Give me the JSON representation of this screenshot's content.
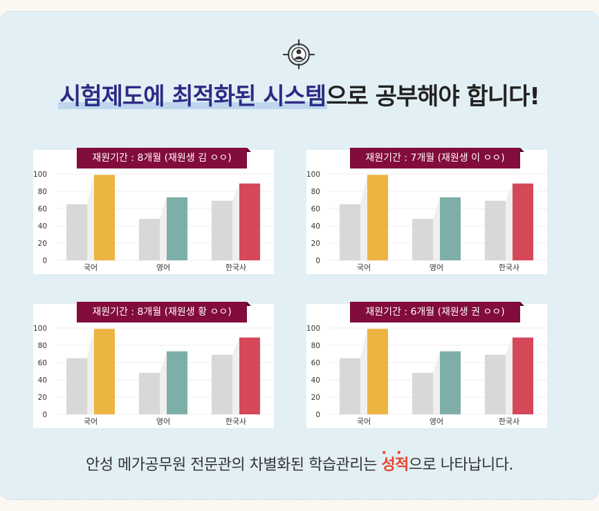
{
  "headline": {
    "part1": "시험제도에 최적화된 시스템",
    "part2": "으로 공부해야 합니다!"
  },
  "footer": {
    "before": "안성 메가공무원 전문관의 차별화된 학습관리는 ",
    "accent": "성적",
    "after": "으로 나타납니다."
  },
  "colors": {
    "baseline_bar": "#d8d8d8",
    "korean": "#ecb440",
    "english": "#7eaea8",
    "history": "#d4485a",
    "label_bg": "#820c3c",
    "headline_blue": "#2c2b86",
    "accent": "#e8452c"
  },
  "icon": "target-person-icon",
  "chart_data": [
    {
      "type": "bar",
      "title": "재원기간 : 8개월 (재원생 김 ㅇㅇ)",
      "categories": [
        "국어",
        "영어",
        "한국사"
      ],
      "series": [
        {
          "values": [
            65,
            48,
            69
          ]
        },
        {
          "values": [
            99,
            73,
            89
          ]
        }
      ],
      "yticks": [
        0,
        20,
        40,
        60,
        80,
        100
      ],
      "ylim": [
        0,
        100
      ],
      "grid": true
    },
    {
      "type": "bar",
      "title": "재원기간 : 7개월 (재원생 이 ㅇㅇ)",
      "categories": [
        "국어",
        "영어",
        "한국사"
      ],
      "series": [
        {
          "values": [
            65,
            48,
            69
          ]
        },
        {
          "values": [
            99,
            73,
            89
          ]
        }
      ],
      "yticks": [
        0,
        20,
        40,
        60,
        80,
        100
      ],
      "ylim": [
        0,
        100
      ],
      "grid": true
    },
    {
      "type": "bar",
      "title": "재원기간 : 8개월 (재원생 황 ㅇㅇ)",
      "categories": [
        "국어",
        "영어",
        "한국사"
      ],
      "series": [
        {
          "values": [
            65,
            48,
            69
          ]
        },
        {
          "values": [
            99,
            73,
            89
          ]
        }
      ],
      "yticks": [
        0,
        20,
        40,
        60,
        80,
        100
      ],
      "ylim": [
        0,
        100
      ],
      "grid": true
    },
    {
      "type": "bar",
      "title": "재원기간 : 6개월 (재원생 권 ㅇㅇ)",
      "categories": [
        "국어",
        "영어",
        "한국사"
      ],
      "series": [
        {
          "values": [
            65,
            48,
            69
          ]
        },
        {
          "values": [
            99,
            73,
            89
          ]
        }
      ],
      "yticks": [
        0,
        20,
        40,
        60,
        80,
        100
      ],
      "ylim": [
        0,
        100
      ],
      "grid": true
    }
  ]
}
